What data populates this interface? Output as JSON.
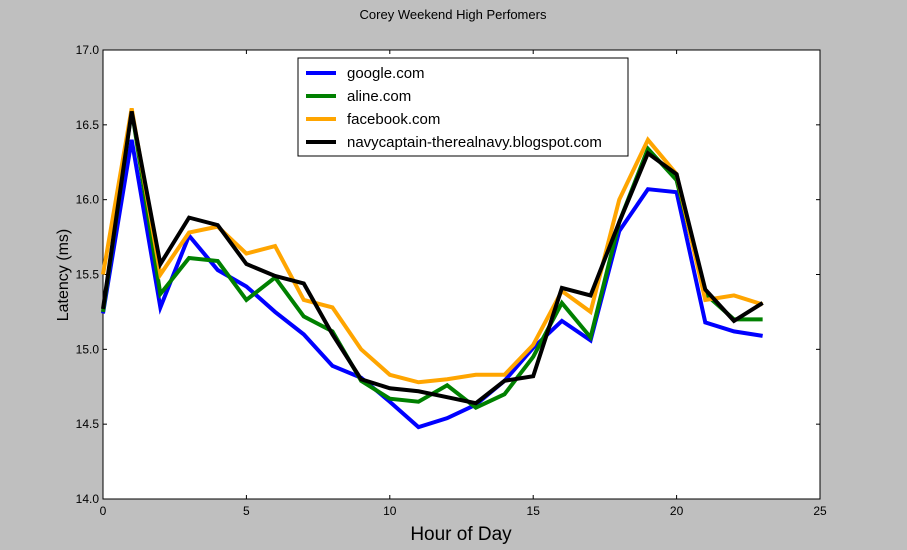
{
  "chart_data": {
    "type": "line",
    "title": "Corey Weekend High Perfomers",
    "xlabel": "Hour of Day",
    "ylabel": "Latency (ms)",
    "xlim": [
      0,
      25
    ],
    "ylim": [
      14.0,
      17.0
    ],
    "xticks": [
      "0",
      "5",
      "10",
      "15",
      "20",
      "25"
    ],
    "yticks": [
      "14.0",
      "14.5",
      "15.0",
      "15.5",
      "16.0",
      "16.5",
      "17.0"
    ],
    "grid": false,
    "legend_position": "top-center",
    "x": [
      0,
      1,
      2,
      3,
      4,
      5,
      6,
      7,
      8,
      9,
      10,
      11,
      12,
      13,
      14,
      15,
      16,
      17,
      18,
      19,
      20,
      21,
      22,
      23
    ],
    "series": [
      {
        "name": "google.com",
        "color": "#0000ff",
        "values": [
          15.24,
          16.4,
          15.28,
          15.76,
          15.53,
          15.42,
          15.25,
          15.1,
          14.89,
          14.81,
          14.65,
          14.48,
          14.54,
          14.63,
          14.79,
          15.01,
          15.19,
          15.06,
          15.79,
          16.07,
          16.05,
          15.18,
          15.12,
          15.09
        ]
      },
      {
        "name": "aline.com",
        "color": "#008000",
        "values": [
          15.25,
          16.6,
          15.37,
          15.61,
          15.59,
          15.33,
          15.48,
          15.22,
          15.12,
          14.79,
          14.67,
          14.65,
          14.76,
          14.61,
          14.7,
          14.95,
          15.31,
          15.08,
          15.85,
          16.34,
          16.13,
          15.37,
          15.2,
          15.2
        ]
      },
      {
        "name": "facebook.com",
        "color": "#ffa500",
        "values": [
          15.5,
          16.61,
          15.5,
          15.78,
          15.82,
          15.64,
          15.69,
          15.33,
          15.28,
          15.0,
          14.83,
          14.78,
          14.8,
          14.83,
          14.83,
          15.03,
          15.39,
          15.25,
          16.0,
          16.4,
          16.17,
          15.33,
          15.36,
          15.3
        ]
      },
      {
        "name": "navycaptain-therealnavy.blogspot.com",
        "color": "#000000",
        "values": [
          15.27,
          16.59,
          15.57,
          15.88,
          15.83,
          15.57,
          15.49,
          15.44,
          15.1,
          14.8,
          14.74,
          14.72,
          14.68,
          14.64,
          14.79,
          14.82,
          15.41,
          15.36,
          15.85,
          16.31,
          16.17,
          15.4,
          15.19,
          15.31
        ]
      }
    ]
  }
}
